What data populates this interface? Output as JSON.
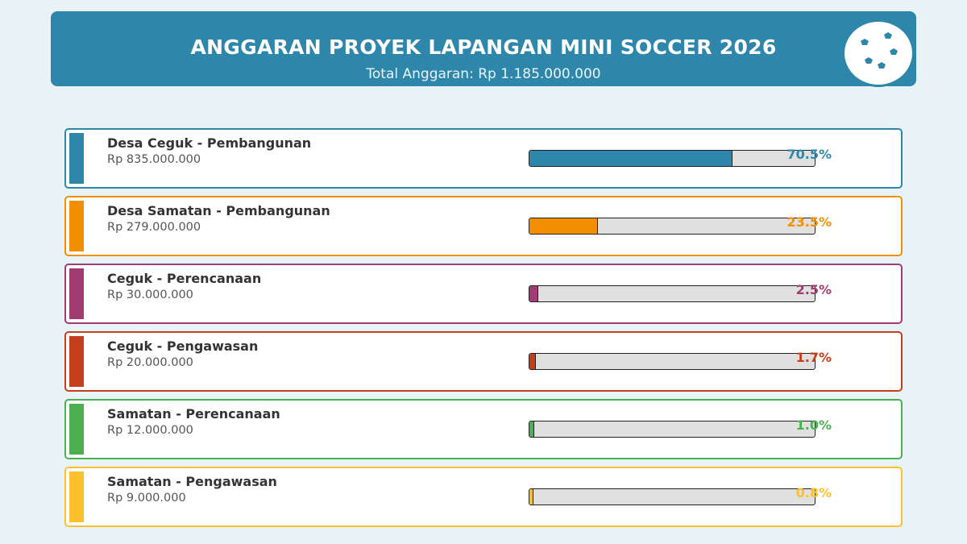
{
  "header": {
    "title": "ANGGARAN PROYEK LAPANGAN MINI SOCCER 2026",
    "subtitle": "Total Anggaran: Rp 1.185.000.000",
    "background_color": "#2e86ab",
    "icon": "soccer-ball-icon"
  },
  "chart_data": {
    "type": "bar",
    "title": "ANGGARAN PROYEK LAPANGAN MINI SOCCER 2026",
    "subtitle": "Total Anggaran: Rp 1.185.000.000",
    "categories": [
      "Desa Ceguk - Pembangunan",
      "Desa Samatan - Pembangunan",
      "Ceguk - Perencanaan",
      "Ceguk - Pengawasan",
      "Samatan - Perencanaan",
      "Samatan - Pengawasan"
    ],
    "values": [
      835000000,
      279000000,
      30000000,
      20000000,
      12000000,
      9000000
    ],
    "items": [
      {
        "name": "Desa Ceguk - Pembangunan",
        "amount": "Rp 835.000.000",
        "value": 835000000,
        "percent": 70.5,
        "percent_label": "70.5%",
        "color": "#2e86ab"
      },
      {
        "name": "Desa Samatan - Pembangunan",
        "amount": "Rp 279.000.000",
        "value": 279000000,
        "percent": 23.5,
        "percent_label": "23.5%",
        "color": "#f18f01"
      },
      {
        "name": "Ceguk - Perencanaan",
        "amount": "Rp 30.000.000",
        "value": 30000000,
        "percent": 2.5,
        "percent_label": "2.5%",
        "color": "#a23b72"
      },
      {
        "name": "Ceguk - Pengawasan",
        "amount": "Rp 20.000.000",
        "value": 20000000,
        "percent": 1.7,
        "percent_label": "1.7%",
        "color": "#c73e1d"
      },
      {
        "name": "Samatan - Perencanaan",
        "amount": "Rp 12.000.000",
        "value": 12000000,
        "percent": 1.0,
        "percent_label": "1.0%",
        "color": "#4caf50"
      },
      {
        "name": "Samatan - Pengawasan",
        "amount": "Rp 9.000.000",
        "value": 9000000,
        "percent": 0.8,
        "percent_label": "0.8%",
        "color": "#fbc02d"
      }
    ],
    "xlim": [
      0,
      100
    ],
    "grid": false,
    "legend": "none"
  }
}
